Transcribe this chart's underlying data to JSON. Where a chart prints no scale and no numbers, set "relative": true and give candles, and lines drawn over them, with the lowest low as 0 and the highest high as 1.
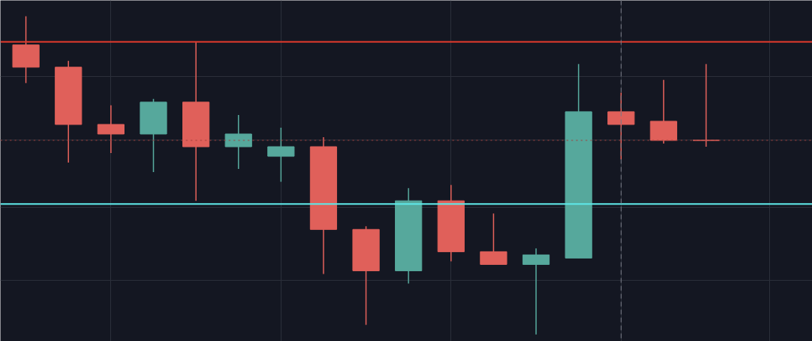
{
  "chart_data": {
    "type": "candlestick",
    "relative": true,
    "categories": [
      null,
      null,
      null,
      null,
      null,
      null,
      null,
      null,
      null,
      null,
      null,
      null,
      null,
      null,
      null,
      null,
      null
    ],
    "ohlc": [
      [
        0.91,
        1.0,
        0.79,
        0.84
      ],
      [
        0.84,
        0.86,
        0.54,
        0.66
      ],
      [
        0.66,
        0.72,
        0.57,
        0.63
      ],
      [
        0.63,
        0.74,
        0.51,
        0.73
      ],
      [
        0.73,
        0.92,
        0.42,
        0.59
      ],
      [
        0.59,
        0.69,
        0.52,
        0.63
      ],
      [
        0.56,
        0.65,
        0.48,
        0.59
      ],
      [
        0.59,
        0.62,
        0.19,
        0.33
      ],
      [
        0.33,
        0.34,
        0.03,
        0.2
      ],
      [
        0.2,
        0.46,
        0.16,
        0.42
      ],
      [
        0.42,
        0.47,
        0.23,
        0.26
      ],
      [
        0.26,
        0.38,
        0.22,
        0.22
      ],
      [
        0.22,
        0.27,
        0.0,
        0.25
      ],
      [
        0.24,
        0.85,
        0.24,
        0.7
      ],
      [
        0.7,
        0.76,
        0.55,
        0.66
      ],
      [
        0.67,
        0.8,
        0.6,
        0.61
      ],
      [
        0.61,
        0.85,
        0.59,
        0.61
      ]
    ],
    "colors": [
      "#e0605a",
      "#e0605a",
      "#e0605a",
      "#56a89c",
      "#e0605a",
      "#56a89c",
      "#56a89c",
      "#e0605a",
      "#e0605a",
      "#56a89c",
      "#e0605a",
      "#e0605a",
      "#56a89c",
      "#56a89c",
      "#e0605a",
      "#e0605a",
      "#e0605a"
    ],
    "ref_lines": [
      {
        "axis": "y",
        "value": 0.92,
        "color": "#d8392c",
        "line_style": "solid"
      },
      {
        "axis": "y",
        "value": 0.61,
        "color": "#a0403c",
        "line_style": "dotted"
      },
      {
        "axis": "y",
        "value": 0.41,
        "color": "#5ee6e6",
        "line_style": "solid"
      }
    ],
    "grid": true
  }
}
